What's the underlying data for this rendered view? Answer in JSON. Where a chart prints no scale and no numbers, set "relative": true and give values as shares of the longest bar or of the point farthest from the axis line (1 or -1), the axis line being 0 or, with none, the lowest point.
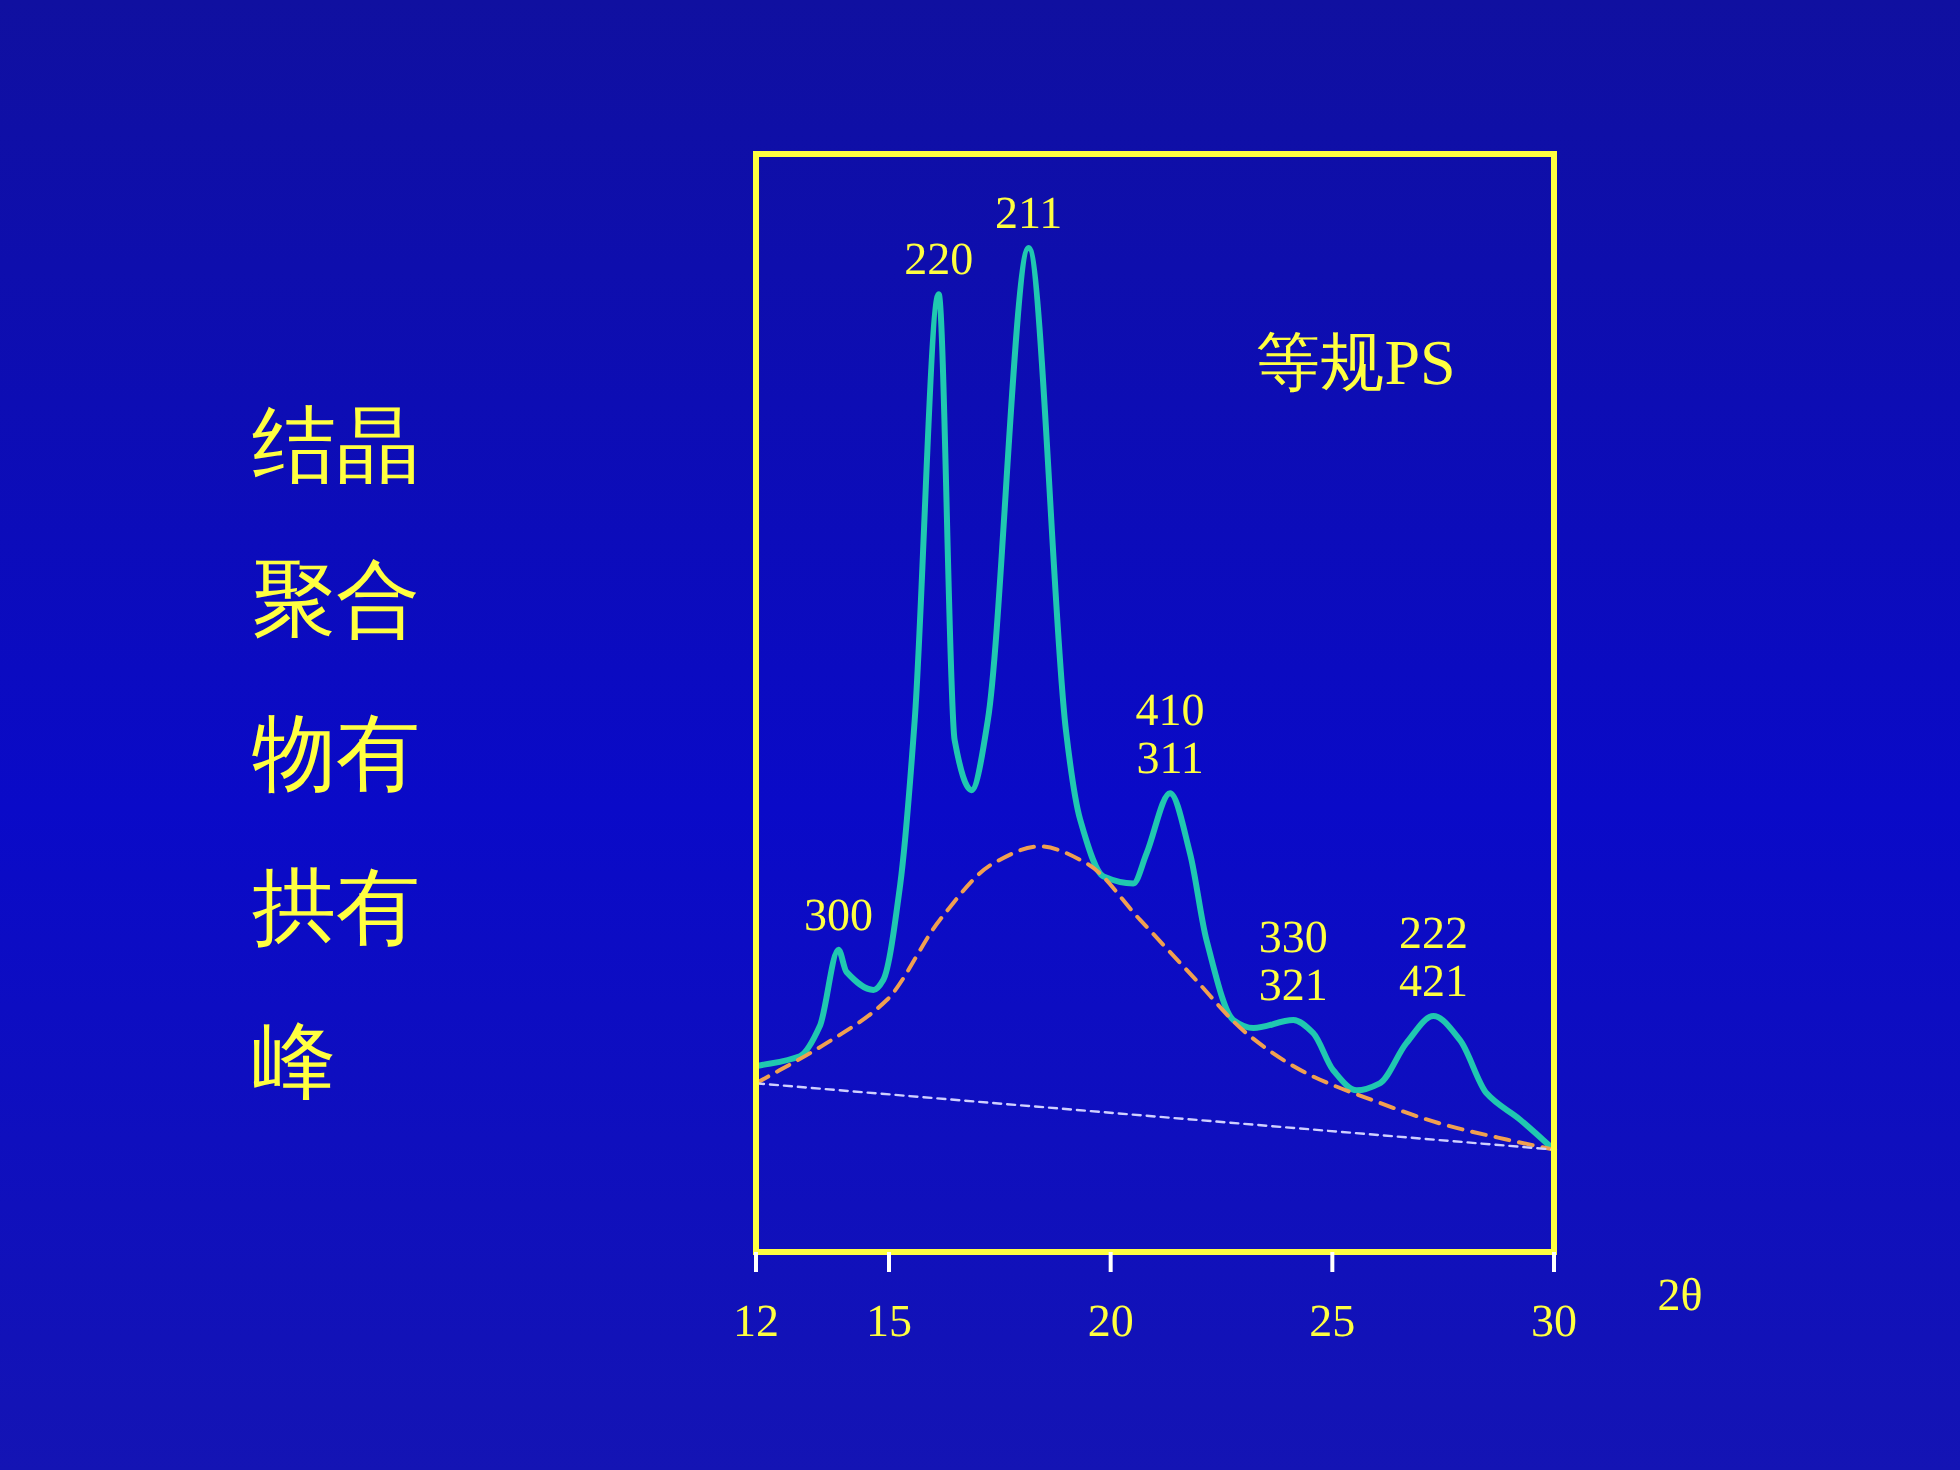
{
  "chart_data": {
    "type": "line",
    "title": "结晶聚合物有拱有峰",
    "xlabel": "2θ",
    "relative": true,
    "xlim": [
      12,
      30
    ],
    "xticks": [
      12,
      15,
      20,
      25,
      30
    ],
    "tick_labels": "x",
    "grid": false,
    "marker": "none",
    "series": [
      {
        "color": "#20c8b0",
        "line_style": "solid",
        "x": [
          12.0,
          12.99,
          13.44,
          13.86,
          14.04,
          14.65,
          14.87,
          15.25,
          15.58,
          16.12,
          16.48,
          16.86,
          17.23,
          18.15,
          18.99,
          19.31,
          19.84,
          20.51,
          20.81,
          21.34,
          21.79,
          22.16,
          22.77,
          23.22,
          24.12,
          24.57,
          25.02,
          25.55,
          26.07,
          26.67,
          27.28,
          27.88,
          28.48,
          29.23,
          30.0
        ],
        "values": [
          0.185,
          0.195,
          0.225,
          0.301,
          0.279,
          0.261,
          0.271,
          0.365,
          0.53,
          0.954,
          0.51,
          0.46,
          0.53,
          1.0,
          0.52,
          0.431,
          0.374,
          0.367,
          0.397,
          0.457,
          0.397,
          0.311,
          0.231,
          0.223,
          0.231,
          0.218,
          0.181,
          0.161,
          0.168,
          0.208,
          0.235,
          0.211,
          0.158,
          0.132,
          0.102
        ]
      },
      {
        "color": "#f0a050",
        "line_style": "dashed",
        "x": [
          12.0,
          13.59,
          14.95,
          16.15,
          17.35,
          18.4,
          19.46,
          20.66,
          21.86,
          23.06,
          24.42,
          25.92,
          27.43,
          28.93,
          30.0
        ],
        "values": [
          0.168,
          0.208,
          0.251,
          0.331,
          0.387,
          0.404,
          0.387,
          0.331,
          0.274,
          0.218,
          0.178,
          0.151,
          0.128,
          0.112,
          0.102
        ]
      },
      {
        "color": "#d0d0ff",
        "line_style": "dashed",
        "x": [
          12,
          30
        ],
        "values": [
          0.168,
          0.102
        ]
      }
    ],
    "annotations": [
      {
        "text": "300",
        "x": 13.86,
        "y": 0.301
      },
      {
        "text": "220",
        "x": 16.12,
        "y": 0.954
      },
      {
        "text": "211",
        "x": 18.15,
        "y": 1.0
      },
      {
        "text": "410",
        "x": 21.34,
        "y": 0.457
      },
      {
        "text": "311",
        "x": 21.34,
        "y": 0.457
      },
      {
        "text": "330",
        "x": 24.12,
        "y": 0.231
      },
      {
        "text": "321",
        "x": 24.12,
        "y": 0.231
      },
      {
        "text": "222",
        "x": 27.28,
        "y": 0.235
      },
      {
        "text": "421",
        "x": 27.28,
        "y": 0.235
      },
      "等规PS"
    ]
  }
}
